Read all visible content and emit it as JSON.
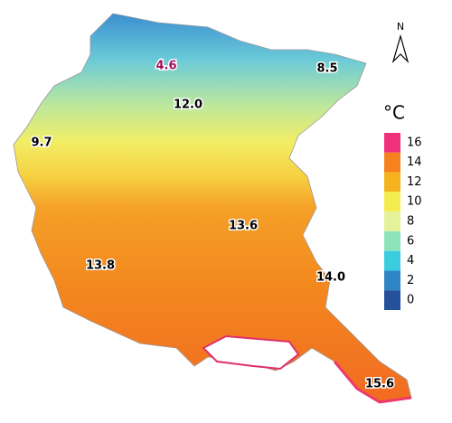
{
  "map": {
    "north": "N",
    "unit": "°C",
    "labels": [
      {
        "text": "4.6",
        "color": "#a0105a"
      },
      {
        "text": "8.5",
        "color": "#000000"
      },
      {
        "text": "12.0",
        "color": "#000000"
      },
      {
        "text": "9.7",
        "color": "#000000"
      },
      {
        "text": "13.6",
        "color": "#000000"
      },
      {
        "text": "13.8",
        "color": "#000000"
      },
      {
        "text": "14.0",
        "color": "#000000"
      },
      {
        "text": "15.6",
        "color": "#000000"
      }
    ],
    "legend": [
      {
        "value": 16,
        "color": "#f0307a"
      },
      {
        "value": 14,
        "color": "#f5821e"
      },
      {
        "value": 12,
        "color": "#f5b41e"
      },
      {
        "value": 10,
        "color": "#f5ec50"
      },
      {
        "value": 8,
        "color": "#e4f29a"
      },
      {
        "value": 6,
        "color": "#8ee3b8"
      },
      {
        "value": 4,
        "color": "#3ccce0"
      },
      {
        "value": 2,
        "color": "#2f86c6"
      },
      {
        "value": 0,
        "color": "#24509c"
      }
    ]
  }
}
